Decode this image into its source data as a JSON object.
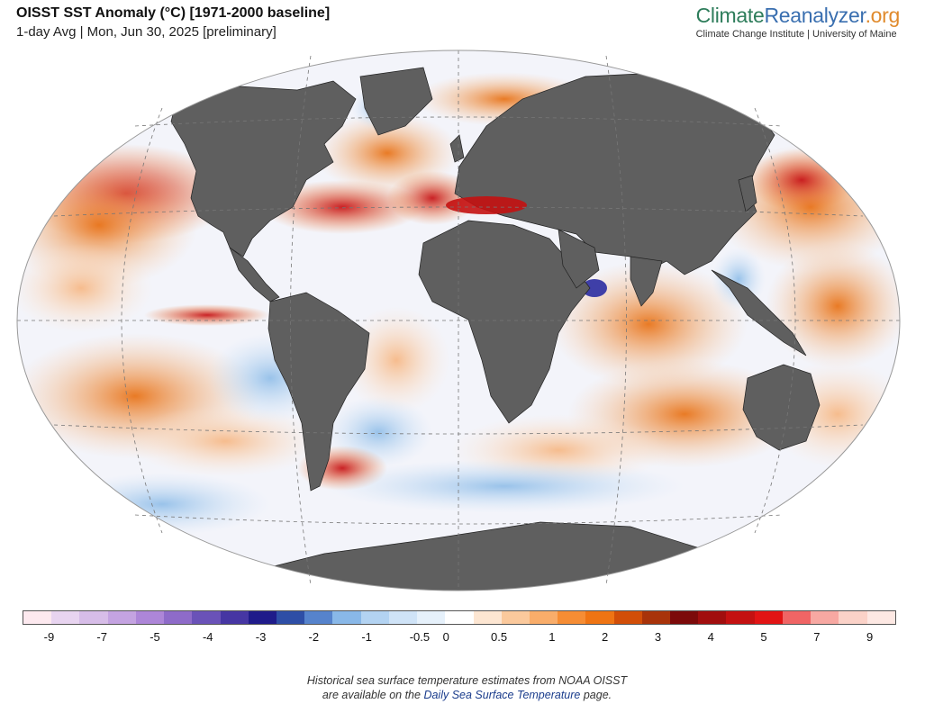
{
  "header": {
    "title": "OISST SST Anomaly (°C) [1971-2000 baseline]",
    "subtitle": "1-day Avg | Mon, Jun 30, 2025 [preliminary]"
  },
  "brand": {
    "logo_part1": "Climate",
    "logo_part2": "Reanalyzer",
    "logo_part3": ".org",
    "tagline": "Climate Change Institute | University of Maine",
    "colors": {
      "climate": "#2e7d5b",
      "reanalyzer": "#3a6fb0",
      "org": "#e08a2c"
    }
  },
  "map": {
    "projection": "Robinson",
    "ocean_color": "#f2f2f8",
    "land_color": "#5f5f5f",
    "graticule": "dashed"
  },
  "colorbar": {
    "colors": [
      "#fde9ef",
      "#e8d4f0",
      "#d7bde8",
      "#c4a3e1",
      "#ad86d8",
      "#8e6bc9",
      "#6a52b8",
      "#4636a3",
      "#1f1b8a",
      "#2e4ea6",
      "#5683cc",
      "#89b8e8",
      "#b3d3f2",
      "#cfe3f7",
      "#e6f1fb",
      "#ffffff",
      "#fde6d2",
      "#fbc99c",
      "#f9ad6a",
      "#f68d34",
      "#ef7413",
      "#d24e08",
      "#a8330a",
      "#7c0a0a",
      "#a10e0e",
      "#c41111",
      "#e21414",
      "#f06565",
      "#f7a8a2",
      "#fbd2c8",
      "#fde8e3"
    ],
    "tick_labels": [
      "-9",
      "-7",
      "-5",
      "-4",
      "-3",
      "-2",
      "-1",
      "-0.5",
      "0",
      "0.5",
      "1",
      "2",
      "3",
      "4",
      "5",
      "7",
      "9"
    ]
  },
  "footer": {
    "line1": "Historical sea surface temperature estimates from NOAA OISST",
    "line2_pre": "are available on the ",
    "line2_link": "Daily Sea Surface Temperature",
    "line2_post": " page."
  }
}
